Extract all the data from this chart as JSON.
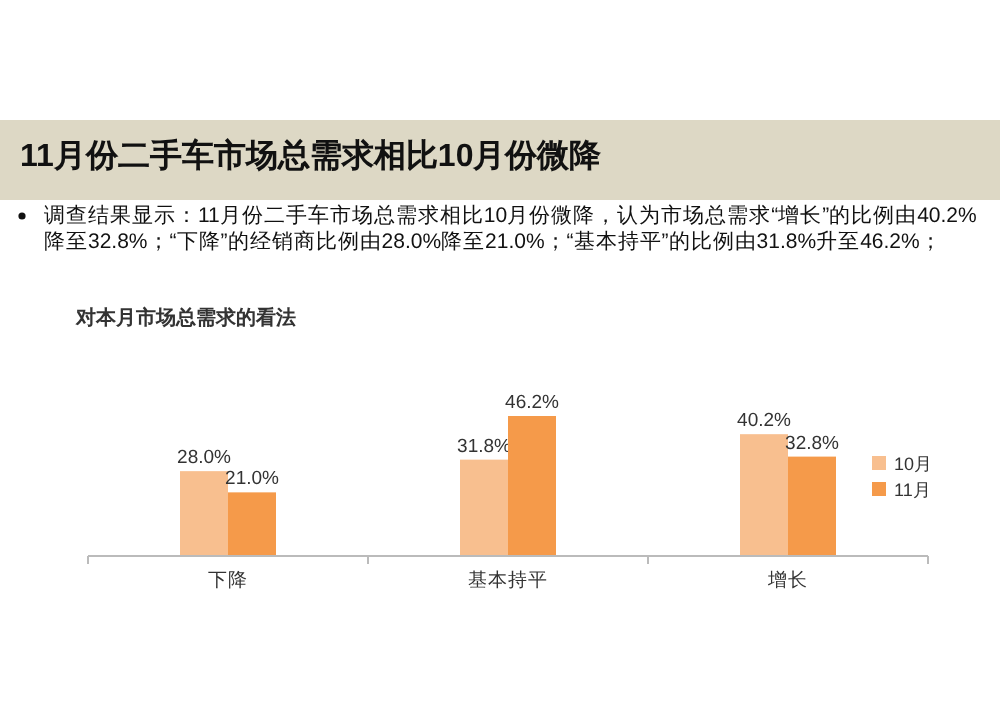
{
  "chart_data": {
    "type": "bar",
    "title": "11月份二手车市场总需求相比10月份微降",
    "subtitle": "调查结果显示：11月份二手车市场总需求相比10月份微降，认为市场总需求“增长”的比例由40.2%降至32.8%；“下降”的经销商比例由28.0%降至21.0%；“基本持平”的比例由31.8%升至46.2%；",
    "annotations": [
      "对本月市场总需求的看法"
    ],
    "categories": [
      "下降",
      "基本持平",
      "增长"
    ],
    "series": [
      {
        "name": "10月",
        "color": "#f8bf8f",
        "values": [
          28.0,
          31.8,
          40.2
        ],
        "value_labels": [
          "28.0%",
          "31.8%",
          "40.2%"
        ]
      },
      {
        "name": "11月",
        "color": "#f59a4a",
        "values": [
          21.0,
          46.2,
          32.8
        ],
        "value_labels": [
          "21.0%",
          "46.2%",
          "32.8%"
        ]
      }
    ],
    "legend": "right"
  }
}
